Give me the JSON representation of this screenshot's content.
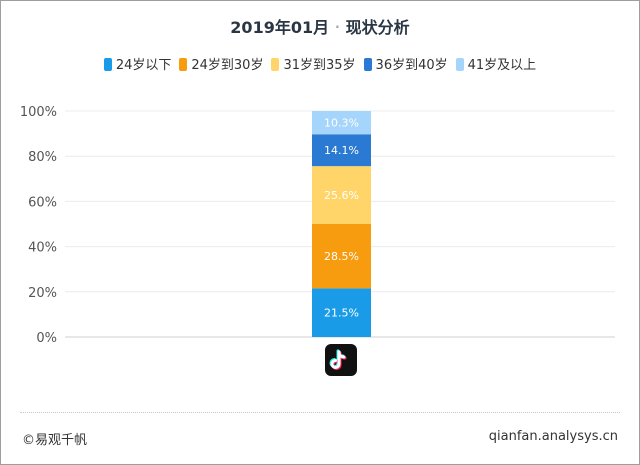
{
  "title": "2019年01月",
  "title_separator": "·",
  "subtitle": "现状分析",
  "legend": [
    {
      "label": "24岁以下",
      "color": "#1a9be8"
    },
    {
      "label": "24岁到30岁",
      "color": "#f79b0f"
    },
    {
      "label": "31岁到35岁",
      "color": "#ffd569"
    },
    {
      "label": "36岁到40岁",
      "color": "#2a79d2"
    },
    {
      "label": "41岁及以上",
      "color": "#a5d5fb"
    }
  ],
  "chart_data": {
    "type": "bar",
    "stacked": true,
    "categories": [
      ""
    ],
    "category_icon": "tiktok-icon",
    "yticks": [
      "0%",
      "20%",
      "40%",
      "60%",
      "80%",
      "100%"
    ],
    "ylim": [
      0,
      100
    ],
    "grid": true,
    "legend_position": "top",
    "series": [
      {
        "name": "24岁以下",
        "values": [
          21.5
        ],
        "label": "21.5%",
        "color": "#1a9be8"
      },
      {
        "name": "24岁到30岁",
        "values": [
          28.5
        ],
        "label": "28.5%",
        "color": "#f79b0f"
      },
      {
        "name": "31岁到35岁",
        "values": [
          25.6
        ],
        "label": "25.6%",
        "color": "#ffd569"
      },
      {
        "name": "36岁到40岁",
        "values": [
          14.1
        ],
        "label": "14.1%",
        "color": "#2a79d2"
      },
      {
        "name": "41岁及以上",
        "values": [
          10.3
        ],
        "label": "10.3%",
        "color": "#a5d5fb"
      }
    ]
  },
  "footer": {
    "left": "©易观千帆",
    "right": "qianfan.analysys.cn"
  }
}
